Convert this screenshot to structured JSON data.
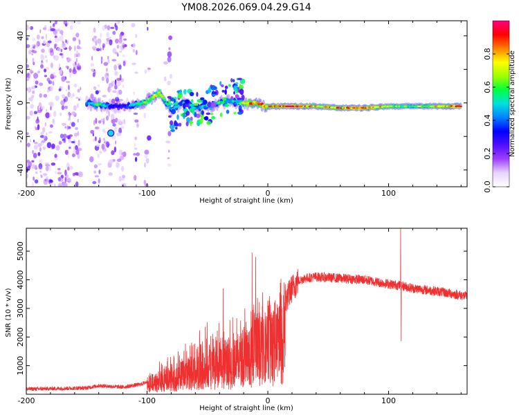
{
  "title": "YM08.2026.069.04.29.G14",
  "chart_data": [
    {
      "type": "heatmap",
      "name": "spectrogram",
      "xlabel": "Height of straight line (km)",
      "ylabel": "Frequency (Hz)",
      "xlim": [
        -200,
        165
      ],
      "ylim": [
        -50,
        49
      ],
      "x_ticks": [
        -200,
        -100,
        0,
        100
      ],
      "x_tick_labels": [
        "-200",
        "-100",
        "0",
        "100"
      ],
      "y_ticks": [
        -40,
        -20,
        0,
        20,
        40
      ],
      "y_tick_labels": [
        "-40",
        "-20",
        "0",
        "20",
        "40"
      ],
      "colorbar": {
        "label": "Normalized spectral amplitude",
        "range": [
          0,
          1
        ],
        "ticks": [
          0,
          0.2,
          0.4,
          0.6,
          0.8
        ],
        "tick_labels": [
          "0.0",
          "0.2",
          "0.4",
          "0.6",
          "0.8"
        ],
        "colors": [
          "#ffffff",
          "#e8d5ff",
          "#a040ff",
          "#5010ff",
          "#0000ff",
          "#0080ff",
          "#00e0e0",
          "#00ff40",
          "#a0ff00",
          "#ffff00",
          "#ff8000",
          "#ff0000",
          "#ff0080"
        ]
      },
      "ridge": [
        {
          "x": -150,
          "y": 0,
          "amp": 0.45
        },
        {
          "x": -140,
          "y": -1,
          "amp": 0.6
        },
        {
          "x": -130,
          "y": -2,
          "amp": 0.35
        },
        {
          "x": -120,
          "y": -2,
          "amp": 0.3
        },
        {
          "x": -110,
          "y": -1,
          "amp": 0.5
        },
        {
          "x": -100,
          "y": 1,
          "amp": 0.65
        },
        {
          "x": -90,
          "y": 6,
          "amp": 0.7
        },
        {
          "x": -80,
          "y": -4,
          "amp": 0.45
        },
        {
          "x": -70,
          "y": 0,
          "amp": 0.5
        },
        {
          "x": -60,
          "y": -3,
          "amp": 0.45
        },
        {
          "x": -50,
          "y": -2,
          "amp": 0.5
        },
        {
          "x": -40,
          "y": 0,
          "amp": 0.55
        },
        {
          "x": -30,
          "y": 1,
          "amp": 0.5
        },
        {
          "x": -20,
          "y": 0,
          "amp": 0.7
        },
        {
          "x": -10,
          "y": 0,
          "amp": 0.85
        },
        {
          "x": 0,
          "y": -2,
          "amp": 0.8
        },
        {
          "x": 20,
          "y": -2,
          "amp": 0.9
        },
        {
          "x": 40,
          "y": -2,
          "amp": 0.75
        },
        {
          "x": 60,
          "y": -3,
          "amp": 0.8
        },
        {
          "x": 80,
          "y": -3,
          "amp": 0.9
        },
        {
          "x": 100,
          "y": -2,
          "amp": 0.7
        },
        {
          "x": 120,
          "y": -2,
          "amp": 0.6
        },
        {
          "x": 140,
          "y": -2,
          "amp": 0.75
        },
        {
          "x": 160,
          "y": -2,
          "amp": 0.9
        }
      ]
    },
    {
      "type": "line",
      "name": "snr",
      "xlabel": "Height of straight line (km)",
      "ylabel": "SNR (10 * v/v)",
      "xlim": [
        -200,
        165
      ],
      "ylim": [
        0,
        5800
      ],
      "x_ticks": [
        -200,
        -100,
        0,
        100
      ],
      "x_tick_labels": [
        "-200",
        "-100",
        "0",
        "100"
      ],
      "y_ticks": [
        1000,
        2000,
        3000,
        4000,
        5000
      ],
      "y_tick_labels": [
        "1000",
        "2000",
        "3000",
        "4000",
        "5000"
      ],
      "color": "#ee3030",
      "envelope": {
        "x": [
          -200,
          -150,
          -140,
          -120,
          -105,
          -90,
          -80,
          -70,
          -60,
          -50,
          -40,
          -30,
          -20,
          -15,
          -10,
          -5,
          0,
          5,
          10,
          15,
          20,
          25,
          30,
          40,
          60,
          80,
          100,
          110,
          120,
          140,
          165
        ],
        "y": [
          180,
          220,
          300,
          250,
          350,
          600,
          800,
          1000,
          1300,
          1500,
          1500,
          1500,
          1900,
          2200,
          2400,
          2700,
          2800,
          2700,
          2900,
          3300,
          3700,
          3950,
          4050,
          4100,
          4050,
          4000,
          3850,
          3800,
          3700,
          3600,
          3420
        ]
      },
      "spikes": [
        {
          "x": -83,
          "y": 1300
        },
        {
          "x": -37,
          "y": 3700
        },
        {
          "x": -13,
          "y": 4950
        },
        {
          "x": -10,
          "y": 4800
        },
        {
          "x": 110,
          "y": 5800
        },
        {
          "x": 110.5,
          "y": 1850
        }
      ]
    }
  ]
}
